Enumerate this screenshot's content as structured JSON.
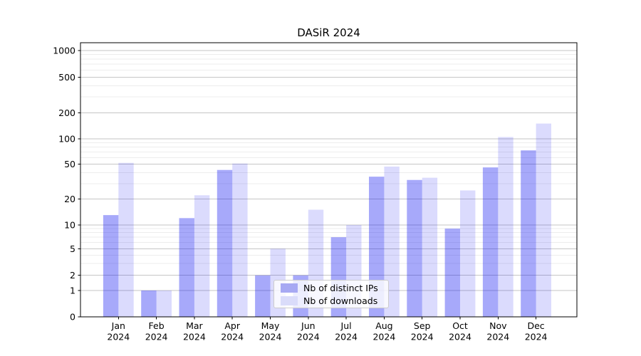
{
  "chart_data": {
    "type": "bar",
    "title": "DASiR 2024",
    "categories": [
      "Jan\n2024",
      "Feb\n2024",
      "Mar\n2024",
      "Apr\n2024",
      "May\n2024",
      "Jun\n2024",
      "Jul\n2024",
      "Aug\n2024",
      "Sep\n2024",
      "Oct\n2024",
      "Nov\n2024",
      "Dec\n2024"
    ],
    "series": [
      {
        "name": "Nb of distinct IPs",
        "color": "#a7a9f3",
        "fill": "#0408f0",
        "fill_opacity": 0.35,
        "values": [
          13,
          1,
          12,
          43,
          2,
          2,
          7,
          36,
          33,
          9,
          46,
          73
        ]
      },
      {
        "name": "Nb of downloads",
        "color": "#dadcfa",
        "fill": "#0408f0",
        "fill_opacity": 0.145,
        "values": [
          52,
          1,
          22,
          51,
          5,
          15,
          10,
          47,
          35,
          25,
          105,
          150
        ]
      }
    ],
    "yticks": [
      0,
      1,
      2,
      5,
      10,
      20,
      50,
      100,
      200,
      500,
      1000
    ],
    "yscale": "symlog",
    "ylim": [
      0,
      1200
    ],
    "xlabel": "",
    "ylabel": "",
    "grid": true,
    "grid_major_color": "#c6c6c6",
    "grid_minor_color": "#ededed",
    "axis_color": "#000000",
    "legend_position": "inside lower-center"
  }
}
